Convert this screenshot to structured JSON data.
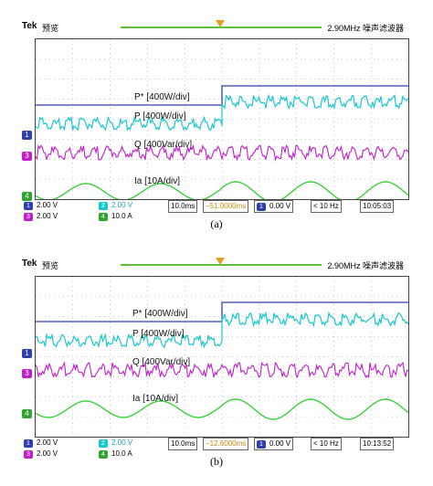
{
  "panels": [
    {
      "id": "a",
      "header": {
        "brand": "Tek",
        "mode": "预览",
        "freq": "2.90MHz 噪声滤波器"
      },
      "labels": {
        "p_ref": "P* [400W/div]",
        "p": "P [400W/div]",
        "q": "Q [400Var/div]",
        "ia": "Ia [10A/div]"
      },
      "channels": {
        "ch1": "2.00 V",
        "ch2": "2.00 V",
        "ch3": "2.00 V",
        "ch4": "10.0 A"
      },
      "footer": {
        "timebase": "10.0ms",
        "trigger_pos": "−51.0000ms",
        "trig_level": "0.00 V",
        "rate": "< 10 Hz",
        "time": "10:05:03"
      },
      "caption": "(a)"
    },
    {
      "id": "b",
      "header": {
        "brand": "Tek",
        "mode": "预览",
        "freq": "2.90MHz 噪声滤波器"
      },
      "labels": {
        "p_ref": "P* [400W/div]",
        "p": "P [400W/div]",
        "q": "Q [400Var/div]",
        "ia": "Ia [10A/div]"
      },
      "channels": {
        "ch1": "2.00 V",
        "ch2": "2.00 V",
        "ch3": "2.00 V",
        "ch4": "10.0 A"
      },
      "footer": {
        "timebase": "10.0ms",
        "trigger_pos": "−12.6000ms",
        "trig_level": "0.00 V",
        "rate": "< 10 Hz",
        "time": "10:13:52"
      },
      "caption": "(b)"
    }
  ],
  "colors": {
    "ch1": "#2e3fb0",
    "ch2": "#18c8d0",
    "ch3": "#c01ec8",
    "ch4": "#3ad13a",
    "grid": "#9aa0a6"
  }
}
